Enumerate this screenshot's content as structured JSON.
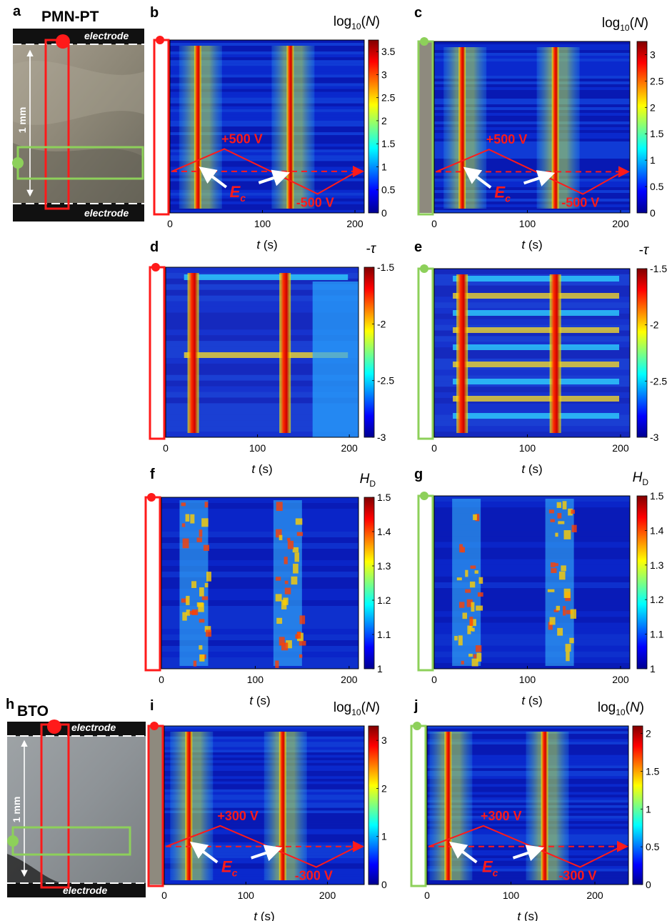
{
  "figure": {
    "panel_letters": [
      "a",
      "b",
      "c",
      "d",
      "e",
      "f",
      "g",
      "h",
      "i",
      "j"
    ],
    "material_top": "PMN-PT",
    "material_bottom": "BTO",
    "electrode_label": "electrode",
    "scale_label": "1 mm",
    "ec_label": "E",
    "ec_sub": "c",
    "colors": {
      "red_marker": "#ff1a1a",
      "green_marker": "#8dd05a"
    }
  },
  "chart_data": [
    {
      "panel": "b",
      "type": "heatmap",
      "xlabel": "t (s)",
      "xticks": [
        0,
        100,
        200
      ],
      "xlim": [
        0,
        210
      ],
      "colorbar_title": "log10(N)",
      "cbar_ticks": [
        "3.5",
        "3",
        "2.5",
        "2",
        "1.5",
        "1",
        "0.5",
        "0"
      ],
      "cbar_range": [
        0,
        3.75
      ],
      "voltage_up": "+500 V",
      "voltage_down": "-500 V",
      "bands_t": [
        30,
        130
      ]
    },
    {
      "panel": "c",
      "type": "heatmap",
      "xlabel": "t (s)",
      "xticks": [
        0,
        100,
        200
      ],
      "xlim": [
        0,
        210
      ],
      "colorbar_title": "log10(N)",
      "cbar_ticks": [
        "3",
        "2.5",
        "2",
        "1.5",
        "1",
        "0.5",
        "0"
      ],
      "cbar_range": [
        0,
        3.25
      ],
      "voltage_up": "+500 V",
      "voltage_down": "-500 V",
      "bands_t": [
        30,
        130
      ]
    },
    {
      "panel": "d",
      "type": "heatmap",
      "xlabel": "t (s)",
      "xticks": [
        0,
        100,
        200
      ],
      "xlim": [
        0,
        210
      ],
      "colorbar_title": "-τ",
      "cbar_ticks": [
        "-1.5",
        "-2",
        "-2.5",
        "-3"
      ],
      "cbar_range": [
        -3,
        -1.5
      ]
    },
    {
      "panel": "e",
      "type": "heatmap",
      "xlabel": "t (s)",
      "xticks": [
        0,
        100,
        200
      ],
      "xlim": [
        0,
        210
      ],
      "colorbar_title": "-τ",
      "cbar_ticks": [
        "-1.5",
        "-2",
        "-2.5",
        "-3"
      ],
      "cbar_range": [
        -3,
        -1.5
      ]
    },
    {
      "panel": "f",
      "type": "heatmap",
      "xlabel": "t (s)",
      "xticks": [
        0,
        100,
        200
      ],
      "xlim": [
        0,
        210
      ],
      "colorbar_title": "HD",
      "cbar_ticks": [
        "1.5",
        "1.4",
        "1.3",
        "1.2",
        "1.1",
        "1"
      ],
      "cbar_range": [
        1,
        1.5
      ]
    },
    {
      "panel": "g",
      "type": "heatmap",
      "xlabel": "t (s)",
      "xticks": [
        0,
        100,
        200
      ],
      "xlim": [
        0,
        210
      ],
      "colorbar_title": "HD",
      "cbar_ticks": [
        "1.5",
        "1.4",
        "1.3",
        "1.2",
        "1.1",
        "1"
      ],
      "cbar_range": [
        1,
        1.5
      ]
    },
    {
      "panel": "i",
      "type": "heatmap",
      "xlabel": "t (s)",
      "xticks": [
        0,
        100,
        200
      ],
      "xlim": [
        0,
        245
      ],
      "colorbar_title": "log10(N)",
      "cbar_ticks": [
        "3",
        "2",
        "1",
        "0"
      ],
      "cbar_range": [
        0,
        3.3
      ],
      "voltage_up": "+300 V",
      "voltage_down": "-300 V",
      "bands_t": [
        30,
        145
      ]
    },
    {
      "panel": "j",
      "type": "heatmap",
      "xlabel": "t (s)",
      "xticks": [
        0,
        100,
        200
      ],
      "xlim": [
        0,
        240
      ],
      "colorbar_title": "log10(N)",
      "cbar_ticks": [
        "2",
        "1.5",
        "1",
        "0.5",
        "0"
      ],
      "cbar_range": [
        0,
        2.1
      ],
      "voltage_up": "+300 V",
      "voltage_down": "-300 V",
      "bands_t": [
        25,
        140
      ]
    }
  ]
}
